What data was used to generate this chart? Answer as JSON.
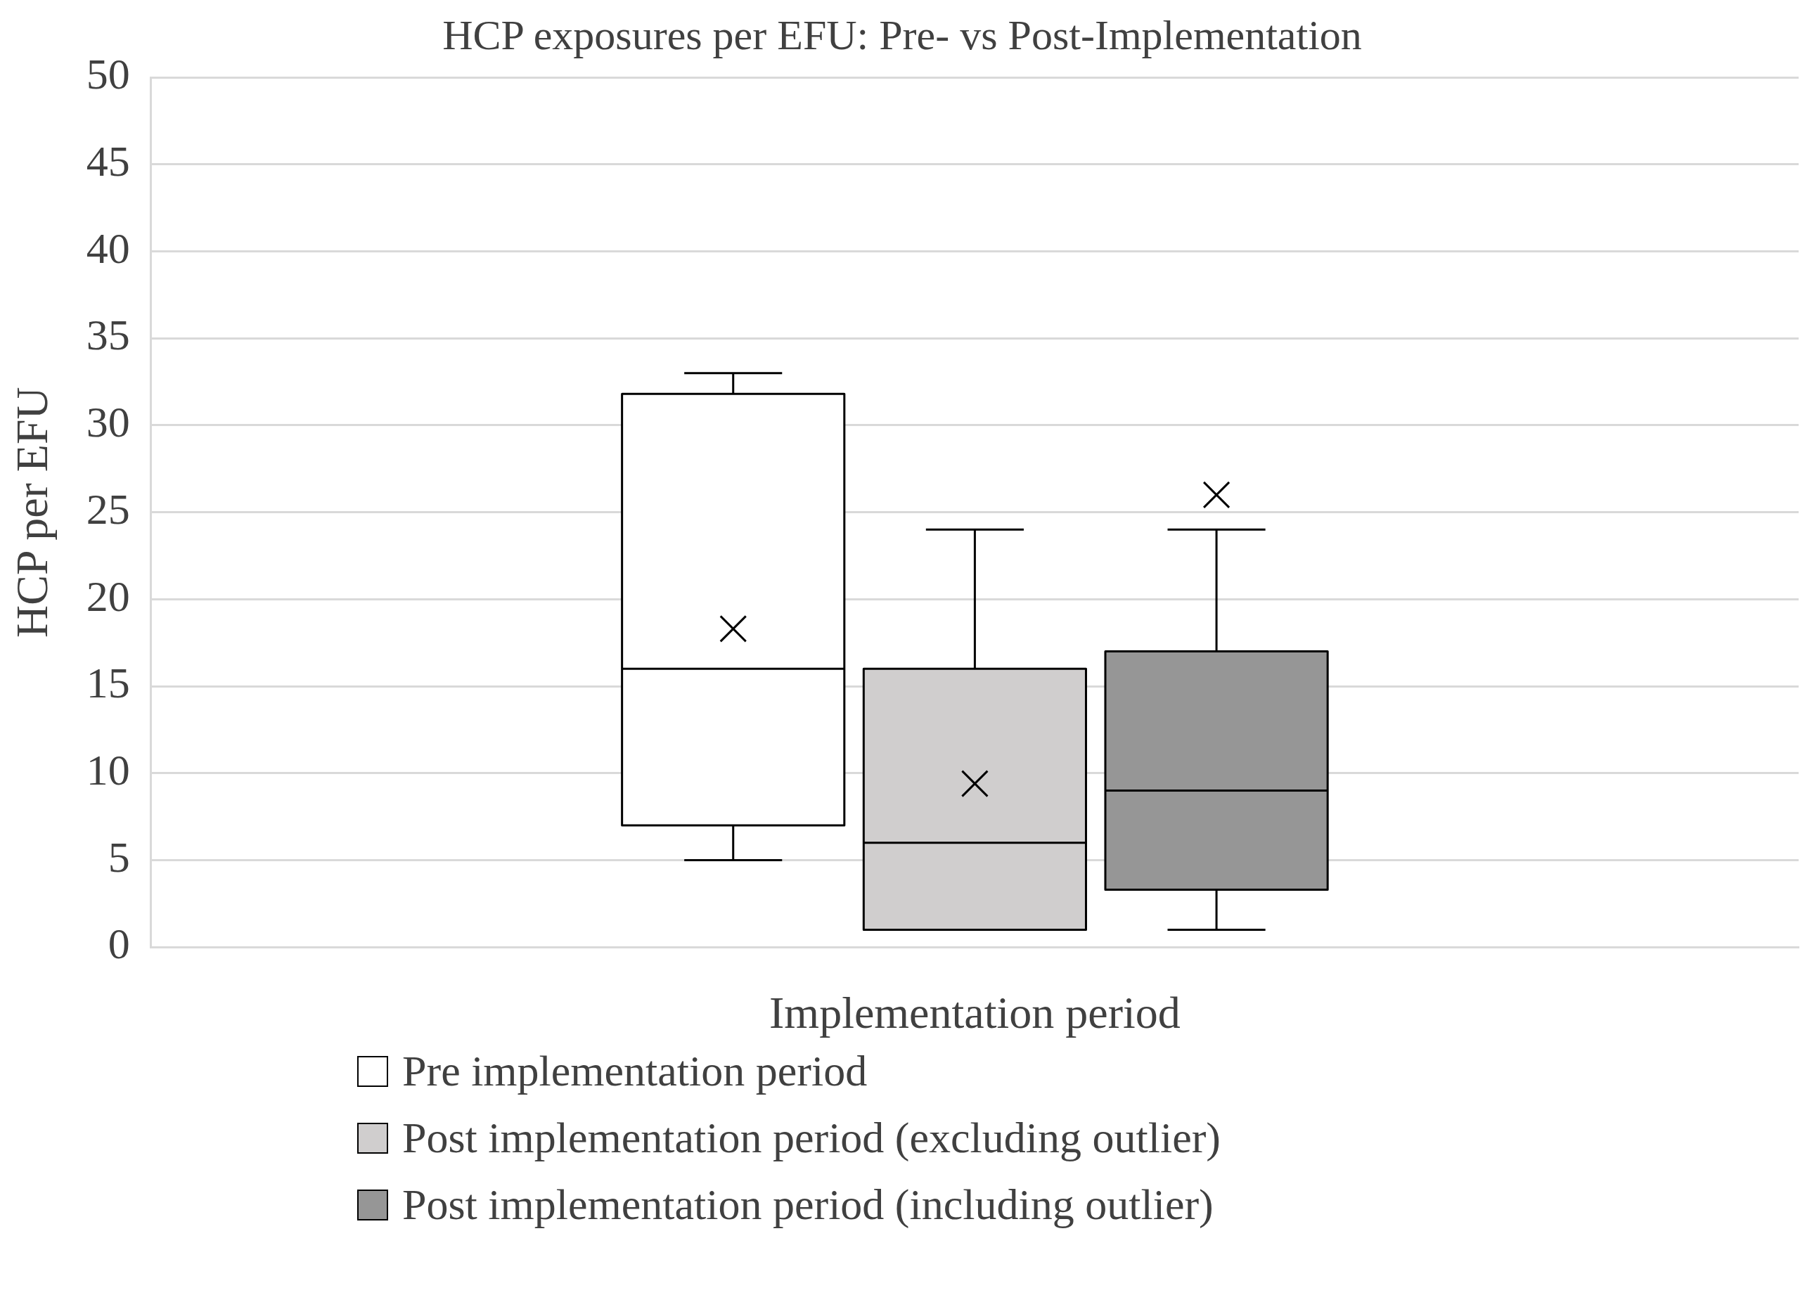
{
  "chart_data": {
    "type": "box",
    "title": "HCP exposures per EFU: Pre- vs Post-Implementation",
    "xlabel": "Implementation period",
    "ylabel": "HCP per EFU",
    "categories": [
      null
    ],
    "series": [
      {
        "name": "Pre implementation period",
        "color": "#ffffff",
        "boxes": [
          {
            "low": 5,
            "q1": 7,
            "median": 16,
            "q3": 31.8,
            "high": 33,
            "mean": 18.3
          }
        ]
      },
      {
        "name": "Post implementation period (excluding outlier)",
        "color": "#d0cece",
        "boxes": [
          {
            "low": 1,
            "q1": 1,
            "median": 6,
            "q3": 16,
            "high": 24,
            "mean": 9.4
          }
        ]
      },
      {
        "name": "Post implementation period (including outlier)",
        "color": "#969696",
        "boxes": [
          {
            "low": 1,
            "q1": 3.3,
            "median": 9,
            "q3": 17,
            "high": 24,
            "mean": 26
          }
        ]
      }
    ],
    "ylim": [
      0,
      50
    ],
    "yticks": [
      0,
      5,
      10,
      15,
      20,
      25,
      30,
      35,
      40,
      45,
      50
    ],
    "grid": "y",
    "legend": "bottom",
    "tick_labels": "y"
  }
}
